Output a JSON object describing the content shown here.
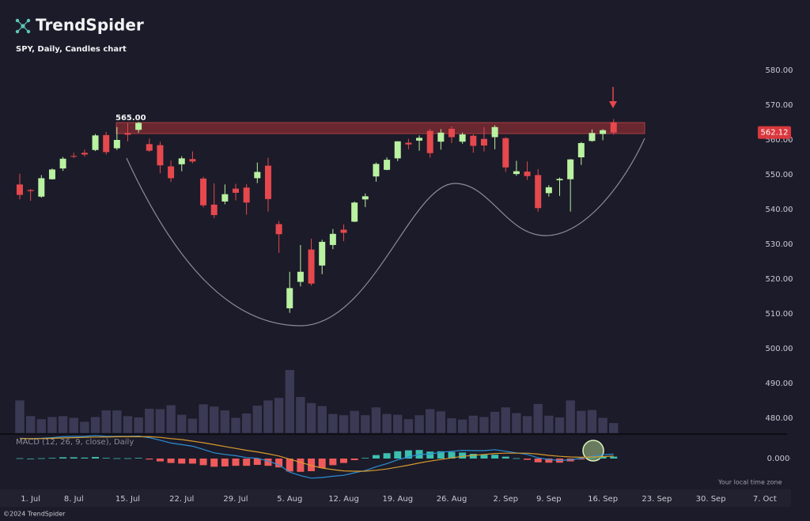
{
  "header": {
    "brand": "TrendSpider"
  },
  "chart_data": [
    {
      "type": "candlestick",
      "title": "SPY, Daily, Candles chart",
      "categories": [
        null,
        "1. Jul",
        null,
        null,
        null,
        "8. Jul",
        null,
        null,
        null,
        null,
        "15. Jul",
        null,
        null,
        null,
        null,
        "22. Jul",
        null,
        null,
        null,
        null,
        "29. Jul",
        null,
        null,
        null,
        null,
        "5. Aug",
        null,
        null,
        null,
        null,
        "12. Aug",
        null,
        null,
        null,
        null,
        "19. Aug",
        null,
        null,
        null,
        null,
        "26. Aug",
        null,
        null,
        null,
        null,
        "2. Sep",
        null,
        null,
        null,
        "9. Sep",
        null,
        null,
        null,
        null,
        "16. Sep",
        null,
        null,
        null,
        null,
        "23. Sep",
        null,
        null,
        null,
        null,
        "30. Sep",
        null,
        null,
        null,
        null,
        "7. Oct",
        null,
        null
      ],
      "open": [
        547.2,
        545.6,
        543.7,
        548.7,
        551.8,
        555.4,
        556.3,
        557.1,
        561.4,
        557.6,
        562.0,
        562.9,
        558.8,
        558.5,
        552.4,
        553.0,
        554.5,
        548.9,
        541.4,
        542.3,
        546.0,
        546.3,
        549.0,
        552.6,
        535.8,
        511.6,
        519.2,
        528.5,
        523.9,
        529.8,
        534.2,
        536.5,
        542.9,
        549.5,
        551.4,
        554.7,
        559.2,
        559.8,
        562.6,
        559.5,
        563.2,
        559.5,
        561.2,
        560.3,
        560.8,
        560.5,
        550.2,
        550.9,
        549.9,
        544.7,
        548.4,
        548.7,
        555.0,
        559.7,
        561.7,
        565.1,
        null,
        null,
        null,
        null,
        null,
        null,
        null,
        null,
        null,
        null,
        null,
        null,
        null,
        null,
        null,
        null
      ],
      "high": [
        550.3,
        545.9,
        549.9,
        551.8,
        555.1,
        556.3,
        557.2,
        561.7,
        562.3,
        563.7,
        564.8,
        565.2,
        560.4,
        559.5,
        554.1,
        555.3,
        556.7,
        549.4,
        547.5,
        547.2,
        547.4,
        547.3,
        553.5,
        554.9,
        536.7,
        522.1,
        529.8,
        531.6,
        531.3,
        534.4,
        535.7,
        542.3,
        544.6,
        553.5,
        555.0,
        559.6,
        560.3,
        561.3,
        563.2,
        563.1,
        563.9,
        562.1,
        561.6,
        563.7,
        564.2,
        560.8,
        554.0,
        553.8,
        551.6,
        547.0,
        549.2,
        554.5,
        559.4,
        563.0,
        563.1,
        566.0,
        null,
        null,
        null,
        null,
        null,
        null,
        null,
        null,
        null,
        null,
        null,
        null,
        null,
        null,
        null,
        null
      ],
      "low": [
        542.9,
        542.5,
        543.4,
        548.6,
        551.1,
        554.8,
        555.2,
        556.8,
        555.8,
        557.1,
        559.6,
        562.1,
        556.6,
        550.4,
        547.9,
        551.0,
        553.3,
        540.6,
        537.5,
        541.5,
        542.6,
        538.5,
        547.6,
        539.4,
        527.5,
        510.3,
        517.9,
        518.1,
        521.4,
        528.6,
        530.9,
        536.4,
        540.7,
        548.0,
        551.3,
        553.9,
        557.3,
        556.9,
        554.9,
        557.2,
        559.1,
        558.9,
        556.3,
        556.7,
        557.3,
        550.8,
        549.7,
        548.5,
        539.4,
        543.7,
        543.9,
        539.4,
        552.8,
        559.5,
        559.9,
        561.5,
        null,
        null,
        null,
        null,
        null,
        null,
        null,
        null,
        null,
        null,
        null,
        null,
        null,
        null,
        null,
        null
      ],
      "close": [
        544.2,
        545.3,
        549.0,
        551.5,
        554.6,
        555.3,
        555.8,
        561.3,
        556.5,
        560.0,
        561.5,
        564.9,
        556.9,
        552.7,
        549.0,
        554.7,
        553.8,
        541.2,
        538.4,
        544.4,
        544.8,
        542.0,
        550.8,
        543.0,
        532.9,
        517.4,
        522.1,
        518.7,
        530.7,
        533.0,
        533.3,
        542.0,
        543.8,
        553.1,
        554.3,
        559.6,
        558.7,
        560.6,
        556.2,
        562.1,
        560.8,
        561.6,
        558.3,
        558.4,
        563.7,
        552.1,
        551.0,
        549.6,
        540.4,
        546.4,
        548.8,
        554.4,
        559.1,
        562.0,
        562.8,
        562.12,
        null,
        null,
        null,
        null,
        null,
        null,
        null,
        null,
        null,
        null,
        null,
        null,
        null,
        null,
        null,
        null
      ],
      "up_color": "#b9f2a1",
      "down_color": "#e5484d",
      "ylim": [
        476,
        584
      ],
      "yticks": [
        {
          "value": 480,
          "label": "480.00"
        },
        {
          "value": 490,
          "label": "490.00"
        },
        {
          "value": 500,
          "label": "500.00"
        },
        {
          "value": 510,
          "label": "510.00"
        },
        {
          "value": 520,
          "label": "520.00"
        },
        {
          "value": 530,
          "label": "530.00"
        },
        {
          "value": 540,
          "label": "540.00"
        },
        {
          "value": 550,
          "label": "550.00"
        },
        {
          "value": 560,
          "label": "560.00"
        },
        {
          "value": 570,
          "label": "570.00"
        },
        {
          "value": 580,
          "label": "580.00"
        }
      ],
      "resistance": {
        "value": 565,
        "label": "565.00"
      },
      "last_price": 562.12
    },
    {
      "type": "bar",
      "color": "#3a3a55",
      "ylim": [
        0,
        160
      ],
      "values": [
        76,
        40,
        33,
        38,
        40,
        36,
        27,
        38,
        53,
        53,
        40,
        37,
        57,
        56,
        65,
        43,
        34,
        67,
        62,
        53,
        36,
        46,
        64,
        76,
        82,
        146,
        84,
        70,
        63,
        45,
        42,
        52,
        42,
        60,
        45,
        43,
        33,
        42,
        56,
        51,
        35,
        32,
        41,
        38,
        50,
        60,
        47,
        40,
        68,
        41,
        37,
        76,
        52,
        54,
        36,
        24,
        null,
        null,
        null,
        null,
        null,
        null,
        null,
        null,
        null,
        null,
        null,
        null,
        null,
        null,
        null,
        null
      ]
    },
    {
      "type": "macd",
      "title": "MACD (12, 26, 9, close), Daily",
      "macd": [
        6.4,
        6.3,
        6.4,
        6.6,
        6.9,
        7.0,
        7.0,
        7.3,
        7.0,
        7.0,
        7.0,
        7.1,
        6.6,
        5.8,
        4.9,
        4.4,
        3.9,
        2.9,
        1.8,
        1.3,
        0.9,
        0.3,
        0.1,
        -0.8,
        -2.0,
        -4.3,
        -5.4,
        -6.2,
        -6.0,
        -5.6,
        -5.3,
        -4.5,
        -3.8,
        -2.6,
        -1.6,
        -0.4,
        0.5,
        1.3,
        1.4,
        2.0,
        2.3,
        2.6,
        2.5,
        2.5,
        2.8,
        2.3,
        1.8,
        1.3,
        0.2,
        -0.3,
        -0.6,
        -0.4,
        0.1,
        0.7,
        1.2,
        1.4,
        null,
        null,
        null,
        null,
        null,
        null,
        null,
        null,
        null,
        null,
        null,
        null,
        null,
        null,
        null,
        null
      ],
      "signal": [
        6.3,
        6.3,
        6.3,
        6.4,
        6.5,
        6.6,
        6.7,
        6.8,
        6.8,
        6.9,
        6.9,
        6.9,
        6.9,
        6.7,
        6.3,
        6.0,
        5.5,
        5.0,
        4.4,
        3.8,
        3.2,
        2.6,
        2.1,
        1.5,
        0.8,
        -0.2,
        -1.2,
        -2.2,
        -3.0,
        -3.5,
        -3.9,
        -4.0,
        -4.0,
        -3.7,
        -3.3,
        -2.7,
        -2.1,
        -1.4,
        -0.8,
        -0.3,
        0.2,
        0.7,
        1.0,
        1.3,
        1.6,
        1.7,
        1.7,
        1.7,
        1.4,
        1.0,
        0.7,
        0.5,
        0.4,
        0.5,
        0.6,
        0.8,
        null,
        null,
        null,
        null,
        null,
        null,
        null,
        null,
        null,
        null,
        null,
        null,
        null,
        null,
        null,
        null
      ],
      "histogram": [
        0.1,
        0,
        0.1,
        0.2,
        0.4,
        0.4,
        0.3,
        0.5,
        0.2,
        0.1,
        0.1,
        0.2,
        -0.3,
        -0.9,
        -1.4,
        -1.6,
        -1.6,
        -2.1,
        -2.6,
        -2.5,
        -2.3,
        -2.3,
        -2.0,
        -2.3,
        -2.8,
        -4.1,
        -4.2,
        -4.0,
        -3.0,
        -2.1,
        -1.4,
        -0.5,
        0.2,
        1.1,
        1.7,
        2.3,
        2.6,
        2.7,
        2.2,
        2.3,
        2.1,
        1.9,
        1.5,
        1.2,
        1.2,
        0.6,
        0.1,
        -0.4,
        -1.2,
        -1.3,
        -1.3,
        -0.9,
        -0.3,
        0.2,
        0.6,
        0.6,
        null,
        null,
        null,
        null,
        null,
        null,
        null,
        null,
        null,
        null,
        null,
        null,
        null,
        null,
        null,
        null
      ],
      "macd_color": "#2b8fd6",
      "signal_color": "#d89b2c",
      "positive_color": "#3bbfb0",
      "negative_color": "#f05a5a",
      "ylim": [
        -8,
        8
      ],
      "yticks": [
        {
          "value": 0,
          "label": "0.000"
        }
      ]
    }
  ],
  "footer": {
    "copyright": "©2024 TrendSpider",
    "timezone": "Your local time zone"
  }
}
